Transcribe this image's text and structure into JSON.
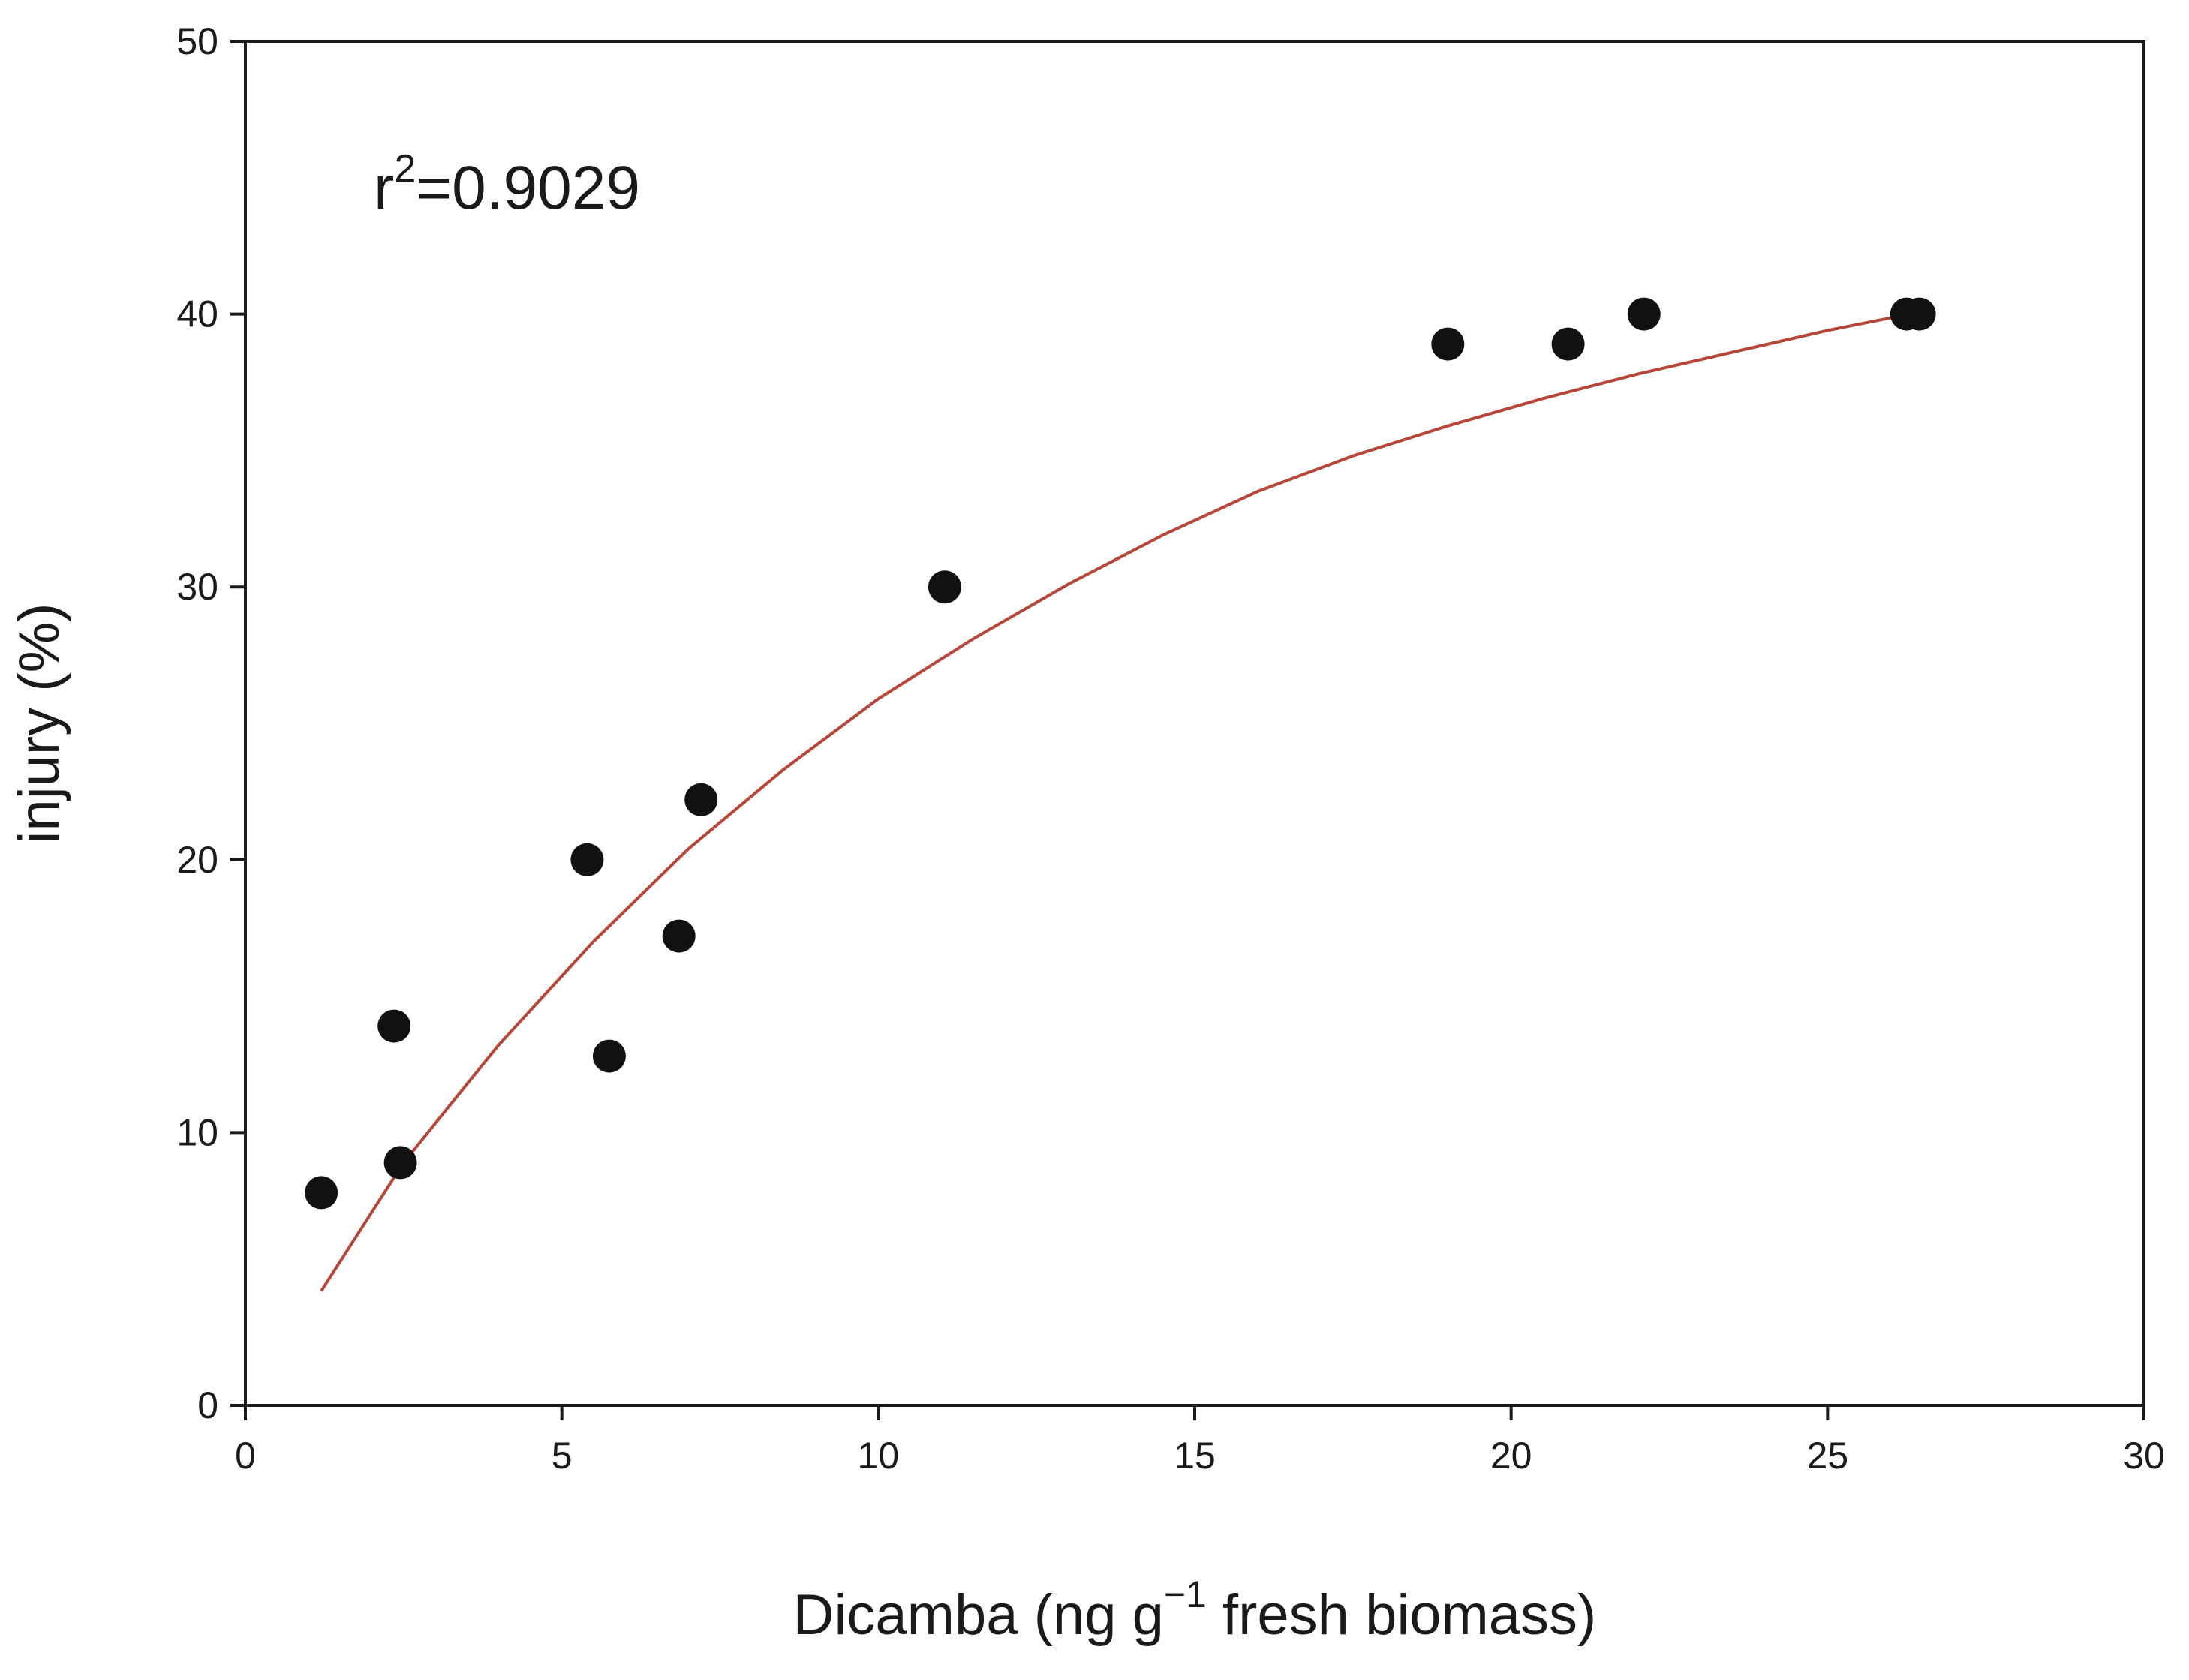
{
  "chart_data": {
    "type": "scatter",
    "title": "",
    "xlabel": "Dicamba (ng g",
    "xlabel_superscript": "−1",
    "xlabel_suffix": " fresh biomass)",
    "ylabel": "injury (%)",
    "xlim": [
      0,
      30
    ],
    "ylim": [
      0,
      50
    ],
    "xticks": [
      0,
      5,
      10,
      15,
      20,
      25,
      30
    ],
    "yticks": [
      0,
      10,
      20,
      30,
      40,
      50
    ],
    "grid": false,
    "annotation": {
      "prefix": "r",
      "superscript": "2",
      "suffix": "=0.9029"
    },
    "points": [
      {
        "x": 1.2,
        "y": 7.8
      },
      {
        "x": 2.35,
        "y": 13.9
      },
      {
        "x": 2.45,
        "y": 8.9
      },
      {
        "x": 5.4,
        "y": 20.0
      },
      {
        "x": 5.75,
        "y": 12.8
      },
      {
        "x": 6.85,
        "y": 17.2
      },
      {
        "x": 7.2,
        "y": 22.2
      },
      {
        "x": 11.05,
        "y": 30.0
      },
      {
        "x": 19.0,
        "y": 38.9
      },
      {
        "x": 20.9,
        "y": 38.9
      },
      {
        "x": 22.1,
        "y": 40.0
      },
      {
        "x": 26.25,
        "y": 40.0
      },
      {
        "x": 26.45,
        "y": 40.0
      }
    ],
    "fit_curve": {
      "name": "fit",
      "color": "#b5473a",
      "x": [
        1.2,
        2.5,
        4,
        5.5,
        7,
        8.5,
        10,
        11.5,
        13,
        14.5,
        16,
        17.5,
        19,
        20.5,
        22,
        23.5,
        25,
        26.3
      ],
      "y": [
        4.2,
        8.9,
        13.2,
        17.0,
        20.4,
        23.3,
        25.9,
        28.1,
        30.1,
        31.9,
        33.5,
        34.8,
        35.9,
        36.9,
        37.8,
        38.6,
        39.4,
        40.0
      ]
    },
    "marker_color": "#111111"
  }
}
